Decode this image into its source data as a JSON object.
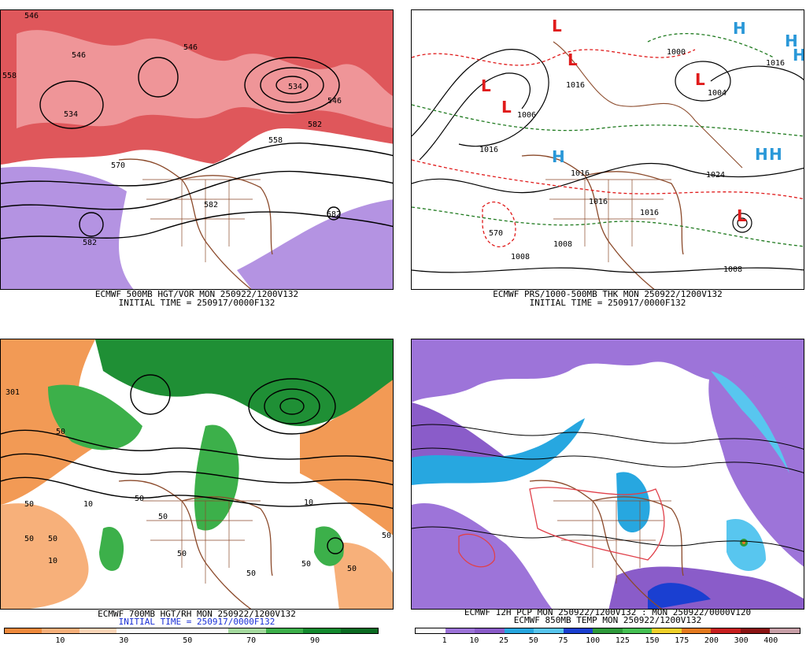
{
  "panels": {
    "p1": {
      "line1": "ECMWF 500MB HGT/VOR MON 250922/1200V132",
      "line2": "INITIAL TIME = 250917/0000F132",
      "contour_labels": [
        "546",
        "558",
        "534",
        "546",
        "534",
        "546",
        "546",
        "582",
        "558",
        "582",
        "570",
        "582",
        "582"
      ]
    },
    "p2": {
      "line1": "ECMWF PRS/1000-500MB THK MON 250922/1200V132",
      "line2": "INITIAL TIME = 250917/0000F132",
      "contour_labels": [
        "1016",
        "1006",
        "1016",
        "1016",
        "1016",
        "1024",
        "1008",
        "570",
        "1016",
        "1008",
        "1000",
        "1004",
        "1008",
        "1016"
      ],
      "lows": [
        "L",
        "L",
        "L",
        "L",
        "L",
        "L"
      ],
      "highs": [
        "H",
        "H",
        "H",
        "H",
        "H",
        "H"
      ]
    },
    "p3": {
      "line1": "ECMWF 700MB HGT/RH MON 250922/1200V132",
      "line2": "INITIAL TIME = 250917/0000F132",
      "contour_labels": [
        "301",
        "50",
        "50",
        "10",
        "50",
        "50",
        "10",
        "50",
        "50",
        "50",
        "50",
        "10",
        "50",
        "50",
        "50"
      ],
      "legend_ticks": [
        "10",
        "30",
        "50",
        "70",
        "90"
      ],
      "legend_colors": [
        "#f08a3c",
        "#f7b07a",
        "#fbd6b8",
        "#ffffff",
        "#ffffff",
        "#ffffff",
        "#a6dba0",
        "#3cb04a",
        "#138a2e",
        "#0b6b22"
      ]
    },
    "p4": {
      "line1": "ECMWF 12H PCP MON 250922/1200V132 : MON 250922/0000V120",
      "line2": "ECMWF 850MB TEMP MON 250922/1200V132",
      "legend_ticks": [
        "1",
        "10",
        "25",
        "50",
        "75",
        "100",
        "125",
        "150",
        "175",
        "200",
        "300",
        "400"
      ],
      "legend_colors": [
        "#ffffff",
        "#9d74d9",
        "#8a5cc9",
        "#27a7e0",
        "#58c6ef",
        "#1a3fd1",
        "#2e9a3a",
        "#45c153",
        "#f0d12a",
        "#e57a1f",
        "#c81f1f",
        "#8b1414",
        "#c8a0a8"
      ]
    }
  }
}
